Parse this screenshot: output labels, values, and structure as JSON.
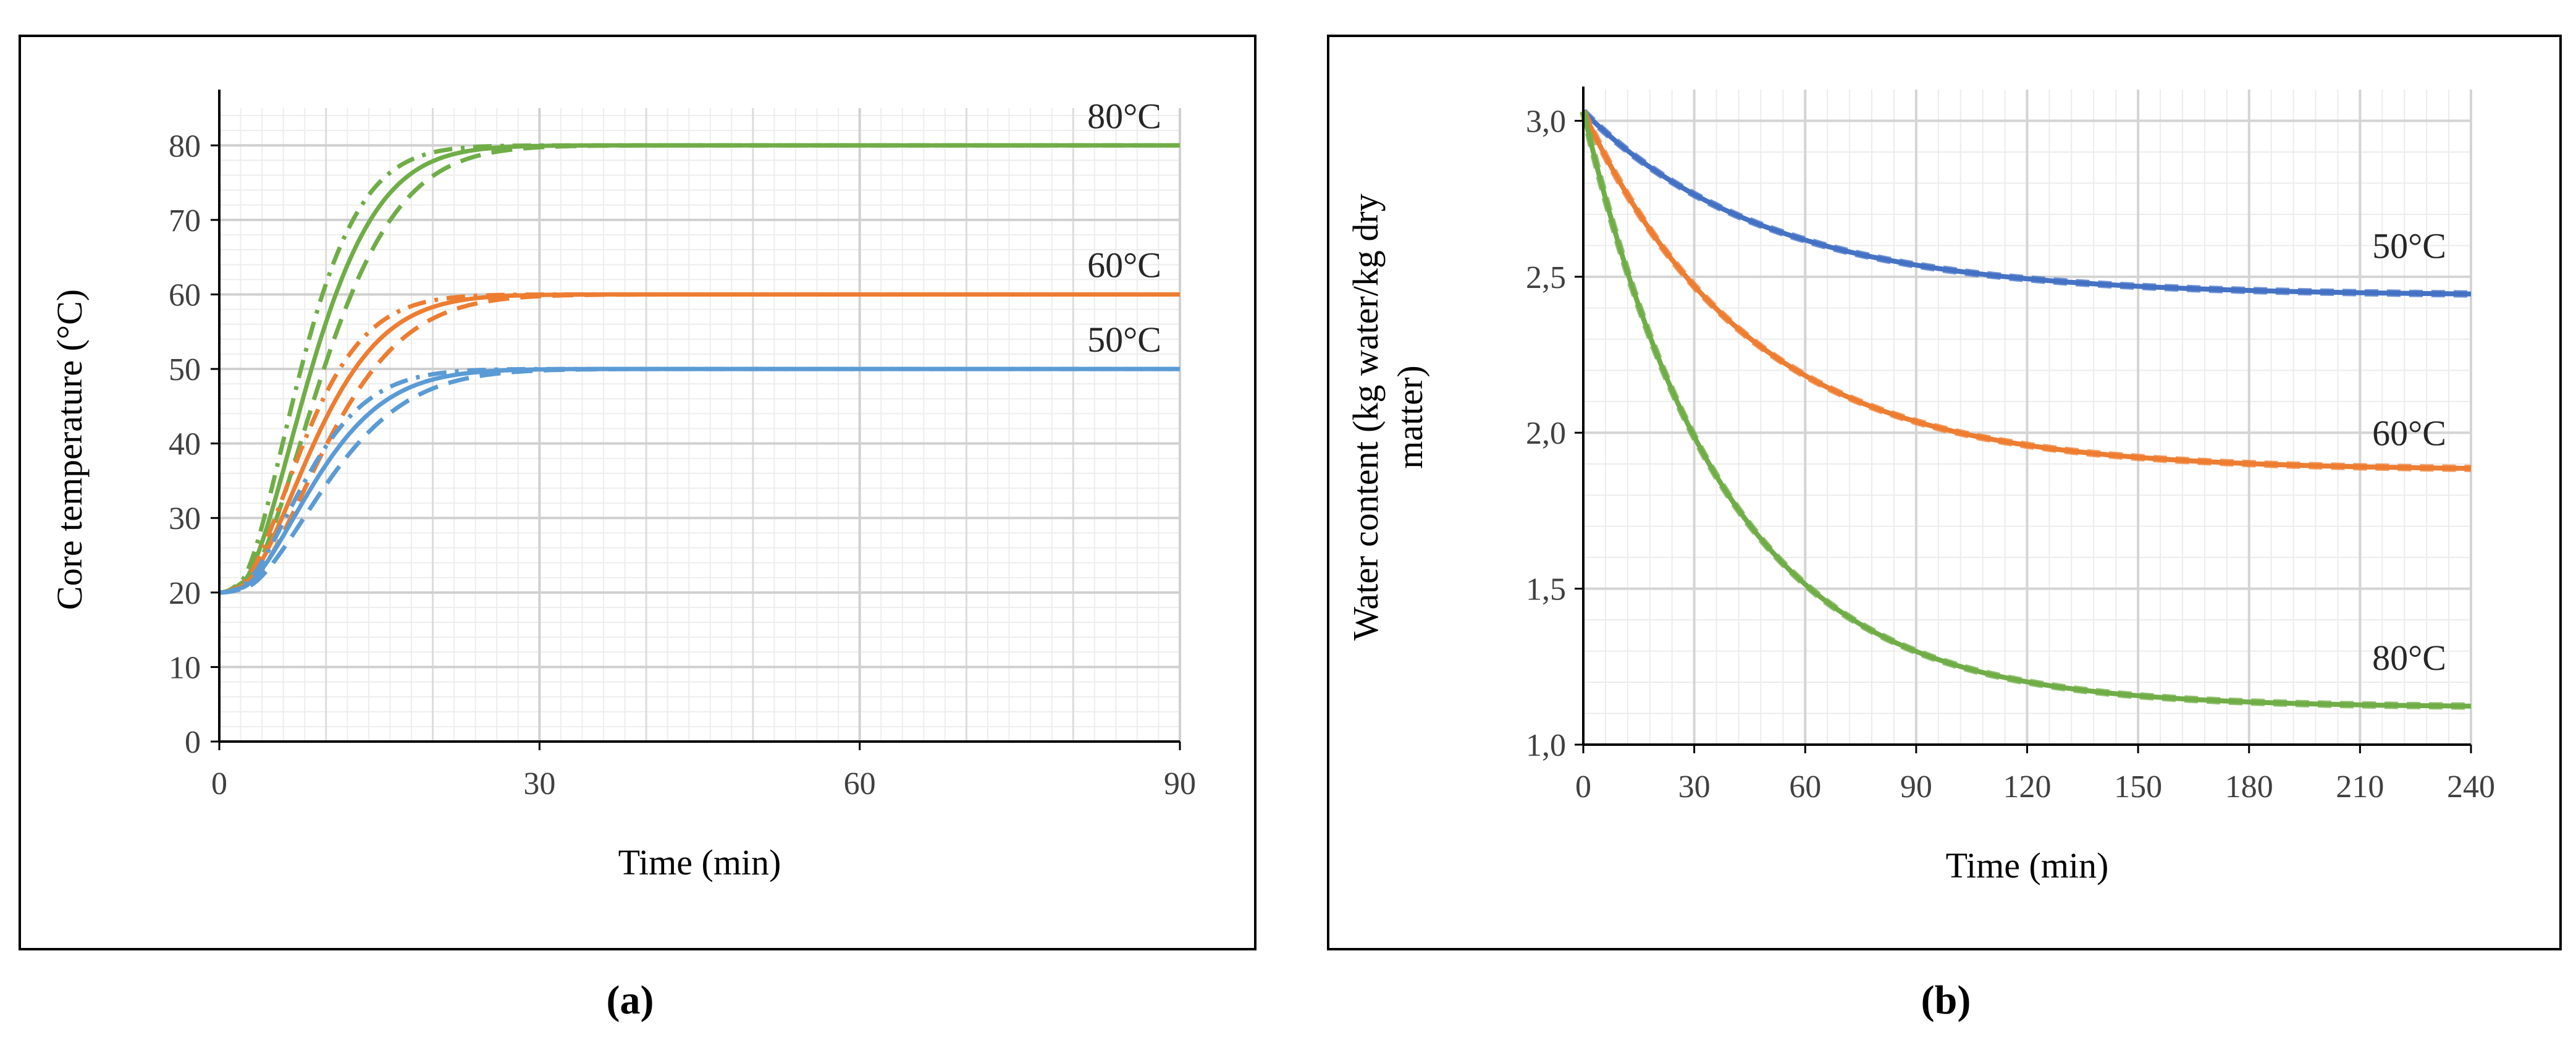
{
  "chart_data": [
    {
      "type": "line",
      "panel_label": "(a)",
      "xlabel": "Time (min)",
      "ylabel": "Core temperature (°C)",
      "xlim": [
        0,
        90
      ],
      "ylim": [
        0,
        85
      ],
      "xticks": [
        0,
        30,
        60,
        90
      ],
      "yticks": [
        0,
        10,
        20,
        30,
        40,
        50,
        60,
        70,
        80
      ],
      "grid": true,
      "series_labels": [
        "80°C",
        "60°C",
        "50°C"
      ],
      "series": [
        {
          "name": "80°C solid",
          "group": "80°C",
          "style": "solid",
          "color": "#70ad47",
          "T0": 20,
          "Tinf": 80,
          "tau": 8.5,
          "lag": 2.0
        },
        {
          "name": "80°C dash-dot",
          "group": "80°C",
          "style": "dashdot",
          "color": "#70ad47",
          "T0": 20,
          "Tinf": 80,
          "tau": 7.5,
          "lag": 1.8
        },
        {
          "name": "80°C dashed",
          "group": "80°C",
          "style": "dashed",
          "color": "#70ad47",
          "T0": 20,
          "Tinf": 80,
          "tau": 9.6,
          "lag": 2.3
        },
        {
          "name": "60°C solid",
          "group": "60°C",
          "style": "solid",
          "color": "#ed7d31",
          "T0": 20,
          "Tinf": 60,
          "tau": 8.8,
          "lag": 2.0
        },
        {
          "name": "60°C dash-dot",
          "group": "60°C",
          "style": "dashdot",
          "color": "#ed7d31",
          "T0": 20,
          "Tinf": 60,
          "tau": 7.8,
          "lag": 1.8
        },
        {
          "name": "60°C dashed",
          "group": "60°C",
          "style": "dashed",
          "color": "#ed7d31",
          "T0": 20,
          "Tinf": 60,
          "tau": 10.0,
          "lag": 2.3
        },
        {
          "name": "50°C solid",
          "group": "50°C",
          "style": "solid",
          "color": "#5b9bd5",
          "T0": 20,
          "Tinf": 50,
          "tau": 9.0,
          "lag": 2.0
        },
        {
          "name": "50°C dash-dot",
          "group": "50°C",
          "style": "dashdot",
          "color": "#5b9bd5",
          "T0": 20,
          "Tinf": 50,
          "tau": 8.0,
          "lag": 1.8
        },
        {
          "name": "50°C dashed",
          "group": "50°C",
          "style": "dashed",
          "color": "#5b9bd5",
          "T0": 20,
          "Tinf": 50,
          "tau": 10.2,
          "lag": 2.3
        }
      ]
    },
    {
      "type": "line",
      "panel_label": "(b)",
      "xlabel": "Time (min)",
      "ylabel": "Water content (kg water/kg dry matter)",
      "xlim": [
        0,
        240
      ],
      "ylim": [
        1.0,
        3.1
      ],
      "xticks": [
        0,
        30,
        60,
        90,
        120,
        150,
        180,
        210,
        240
      ],
      "yticks": [
        "1,0",
        "1,5",
        "2,0",
        "2,5",
        "3,0"
      ],
      "ytick_values": [
        1.0,
        1.5,
        2.0,
        2.5,
        3.0
      ],
      "grid": true,
      "series_labels": [
        "50°C",
        "60°C",
        "80°C"
      ],
      "series": [
        {
          "name": "50°C",
          "color": "#4472c4",
          "W0": 3.03,
          "Winf": 2.44,
          "tau": 50
        },
        {
          "name": "60°C",
          "color": "#ed7d31",
          "W0": 3.03,
          "Winf": 1.88,
          "tau": 45
        },
        {
          "name": "80°C",
          "color": "#70ad47",
          "W0": 3.03,
          "Winf": 1.12,
          "tau": 38
        }
      ]
    }
  ]
}
